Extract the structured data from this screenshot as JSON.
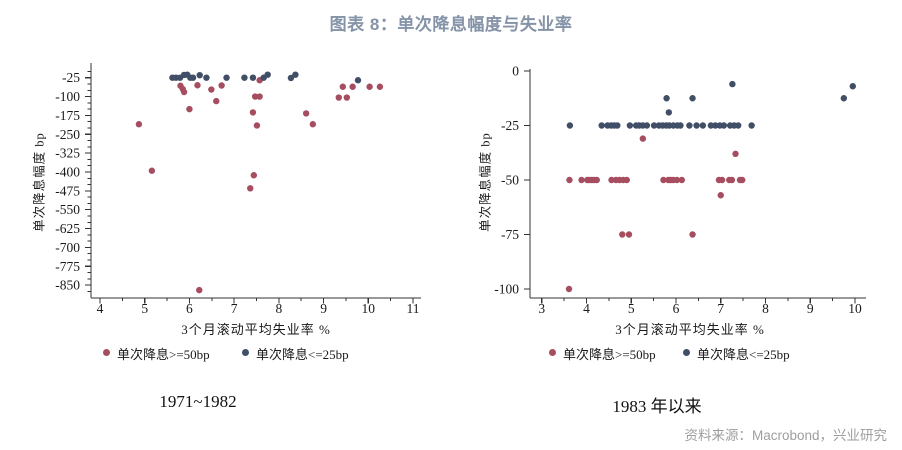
{
  "header": {
    "title": "图表 8：单次降息幅度与失业率"
  },
  "source_note": "资料来源：Macrobond，兴业研究",
  "colors": {
    "red_series": "#a64d60",
    "blue_series": "#404e66",
    "title": "#8493a7",
    "source_text": "#9e9e9e",
    "axis": "#333333"
  },
  "legend": {
    "ge50_label": "单次降息>=50bp",
    "le25_label": "单次降息<=25bp"
  },
  "chart_data": [
    {
      "type": "scatter",
      "title": "1971~1982",
      "caption": "1971~1982",
      "xlabel": "3个月滚动平均失业率 %",
      "ylabel": "单次降息幅度 bp",
      "xlim": [
        4,
        11
      ],
      "ylim": [
        -880,
        0
      ],
      "xticks": [
        4,
        5,
        6,
        7,
        8,
        9,
        10,
        11
      ],
      "yticks": [
        -25,
        -100,
        -175,
        -250,
        -325,
        -400,
        -475,
        -550,
        -625,
        -700,
        -775,
        -850
      ],
      "x_minor_step": 0.5,
      "y_minor_step": 25,
      "grid": false,
      "legend_position": "bottom",
      "series": [
        {
          "name": "单次降息>=50bp",
          "color_key": "red_series",
          "points": [
            [
              4.87,
              -210
            ],
            [
              5.16,
              -395
            ],
            [
              5.8,
              -57
            ],
            [
              5.85,
              -70
            ],
            [
              5.88,
              -82
            ],
            [
              6.0,
              -150
            ],
            [
              6.18,
              -55
            ],
            [
              6.49,
              -72
            ],
            [
              6.6,
              -118
            ],
            [
              6.72,
              -56
            ],
            [
              6.22,
              -870
            ],
            [
              7.47,
              -100
            ],
            [
              7.57,
              -100
            ],
            [
              7.42,
              -163
            ],
            [
              7.51,
              -215
            ],
            [
              7.57,
              -35
            ],
            [
              7.36,
              -465
            ],
            [
              7.44,
              -413
            ],
            [
              8.61,
              -167
            ],
            [
              8.76,
              -210
            ],
            [
              9.34,
              -104
            ],
            [
              9.52,
              -104
            ],
            [
              9.43,
              -61
            ],
            [
              9.65,
              -61
            ],
            [
              10.03,
              -61
            ],
            [
              10.26,
              -61
            ]
          ]
        },
        {
          "name": "单次降息<=25bp",
          "color_key": "blue_series",
          "points": [
            [
              5.62,
              -25
            ],
            [
              5.7,
              -25
            ],
            [
              5.79,
              -25
            ],
            [
              5.88,
              -14
            ],
            [
              5.95,
              -13
            ],
            [
              6.02,
              -25
            ],
            [
              6.08,
              -25
            ],
            [
              6.23,
              -15
            ],
            [
              6.38,
              -25
            ],
            [
              6.83,
              -25
            ],
            [
              7.23,
              -25
            ],
            [
              7.42,
              -25
            ],
            [
              7.66,
              -25
            ],
            [
              7.75,
              -13
            ],
            [
              8.27,
              -26
            ],
            [
              8.37,
              -13
            ],
            [
              9.77,
              -35
            ]
          ]
        }
      ]
    },
    {
      "type": "scatter",
      "title": "1983 年以来",
      "caption": "1983 年以来",
      "xlabel": "3个月滚动平均失业率 %",
      "ylabel": "单次降息幅度 bp",
      "xlim": [
        3,
        10
      ],
      "ylim": [
        -105,
        0
      ],
      "xticks": [
        3,
        4,
        5,
        6,
        7,
        8,
        9,
        10
      ],
      "yticks": [
        0,
        -25,
        -50,
        -75,
        -100
      ],
      "x_minor_step": 0.5,
      "y_minor_step": null,
      "grid": false,
      "legend_position": "bottom",
      "series": [
        {
          "name": "单次降息>=50bp",
          "color_key": "red_series",
          "points": [
            [
              3.61,
              -100
            ],
            [
              3.62,
              -50
            ],
            [
              3.89,
              -50
            ],
            [
              4.02,
              -50
            ],
            [
              4.06,
              -50
            ],
            [
              4.12,
              -50
            ],
            [
              4.17,
              -50
            ],
            [
              4.23,
              -50
            ],
            [
              4.56,
              -50
            ],
            [
              4.66,
              -50
            ],
            [
              4.74,
              -50
            ],
            [
              4.82,
              -50
            ],
            [
              4.9,
              -50
            ],
            [
              4.8,
              -75
            ],
            [
              4.95,
              -75
            ],
            [
              5.26,
              -31
            ],
            [
              5.72,
              -50
            ],
            [
              5.83,
              -50
            ],
            [
              5.88,
              -50
            ],
            [
              5.94,
              -50
            ],
            [
              6.02,
              -50
            ],
            [
              6.13,
              -50
            ],
            [
              6.37,
              -75
            ],
            [
              6.96,
              -50
            ],
            [
              7.03,
              -50
            ],
            [
              7.19,
              -50
            ],
            [
              7.25,
              -50
            ],
            [
              7.43,
              -50
            ],
            [
              7.48,
              -50
            ],
            [
              7.0,
              -57
            ],
            [
              7.33,
              -38
            ]
          ]
        },
        {
          "name": "单次降息<=25bp",
          "color_key": "blue_series",
          "points": [
            [
              3.63,
              -25
            ],
            [
              4.34,
              -25
            ],
            [
              4.47,
              -25
            ],
            [
              4.55,
              -25
            ],
            [
              4.62,
              -25
            ],
            [
              4.69,
              -25
            ],
            [
              4.97,
              -25
            ],
            [
              5.11,
              -25
            ],
            [
              5.18,
              -25
            ],
            [
              5.26,
              -25
            ],
            [
              5.35,
              -25
            ],
            [
              5.51,
              -25
            ],
            [
              5.62,
              -25
            ],
            [
              5.7,
              -25
            ],
            [
              5.78,
              -25
            ],
            [
              5.85,
              -25
            ],
            [
              5.94,
              -25
            ],
            [
              6.03,
              -25
            ],
            [
              6.1,
              -25
            ],
            [
              6.3,
              -25
            ],
            [
              6.46,
              -25
            ],
            [
              6.6,
              -25
            ],
            [
              6.78,
              -25
            ],
            [
              6.88,
              -25
            ],
            [
              6.98,
              -25
            ],
            [
              7.07,
              -25
            ],
            [
              7.21,
              -25
            ],
            [
              7.3,
              -25
            ],
            [
              7.39,
              -25
            ],
            [
              7.69,
              -25
            ],
            [
              5.79,
              -12.5
            ],
            [
              5.84,
              -19
            ],
            [
              6.37,
              -12.5
            ],
            [
              7.26,
              -6
            ],
            [
              9.75,
              -12.5
            ],
            [
              9.95,
              -7
            ]
          ]
        }
      ]
    }
  ]
}
